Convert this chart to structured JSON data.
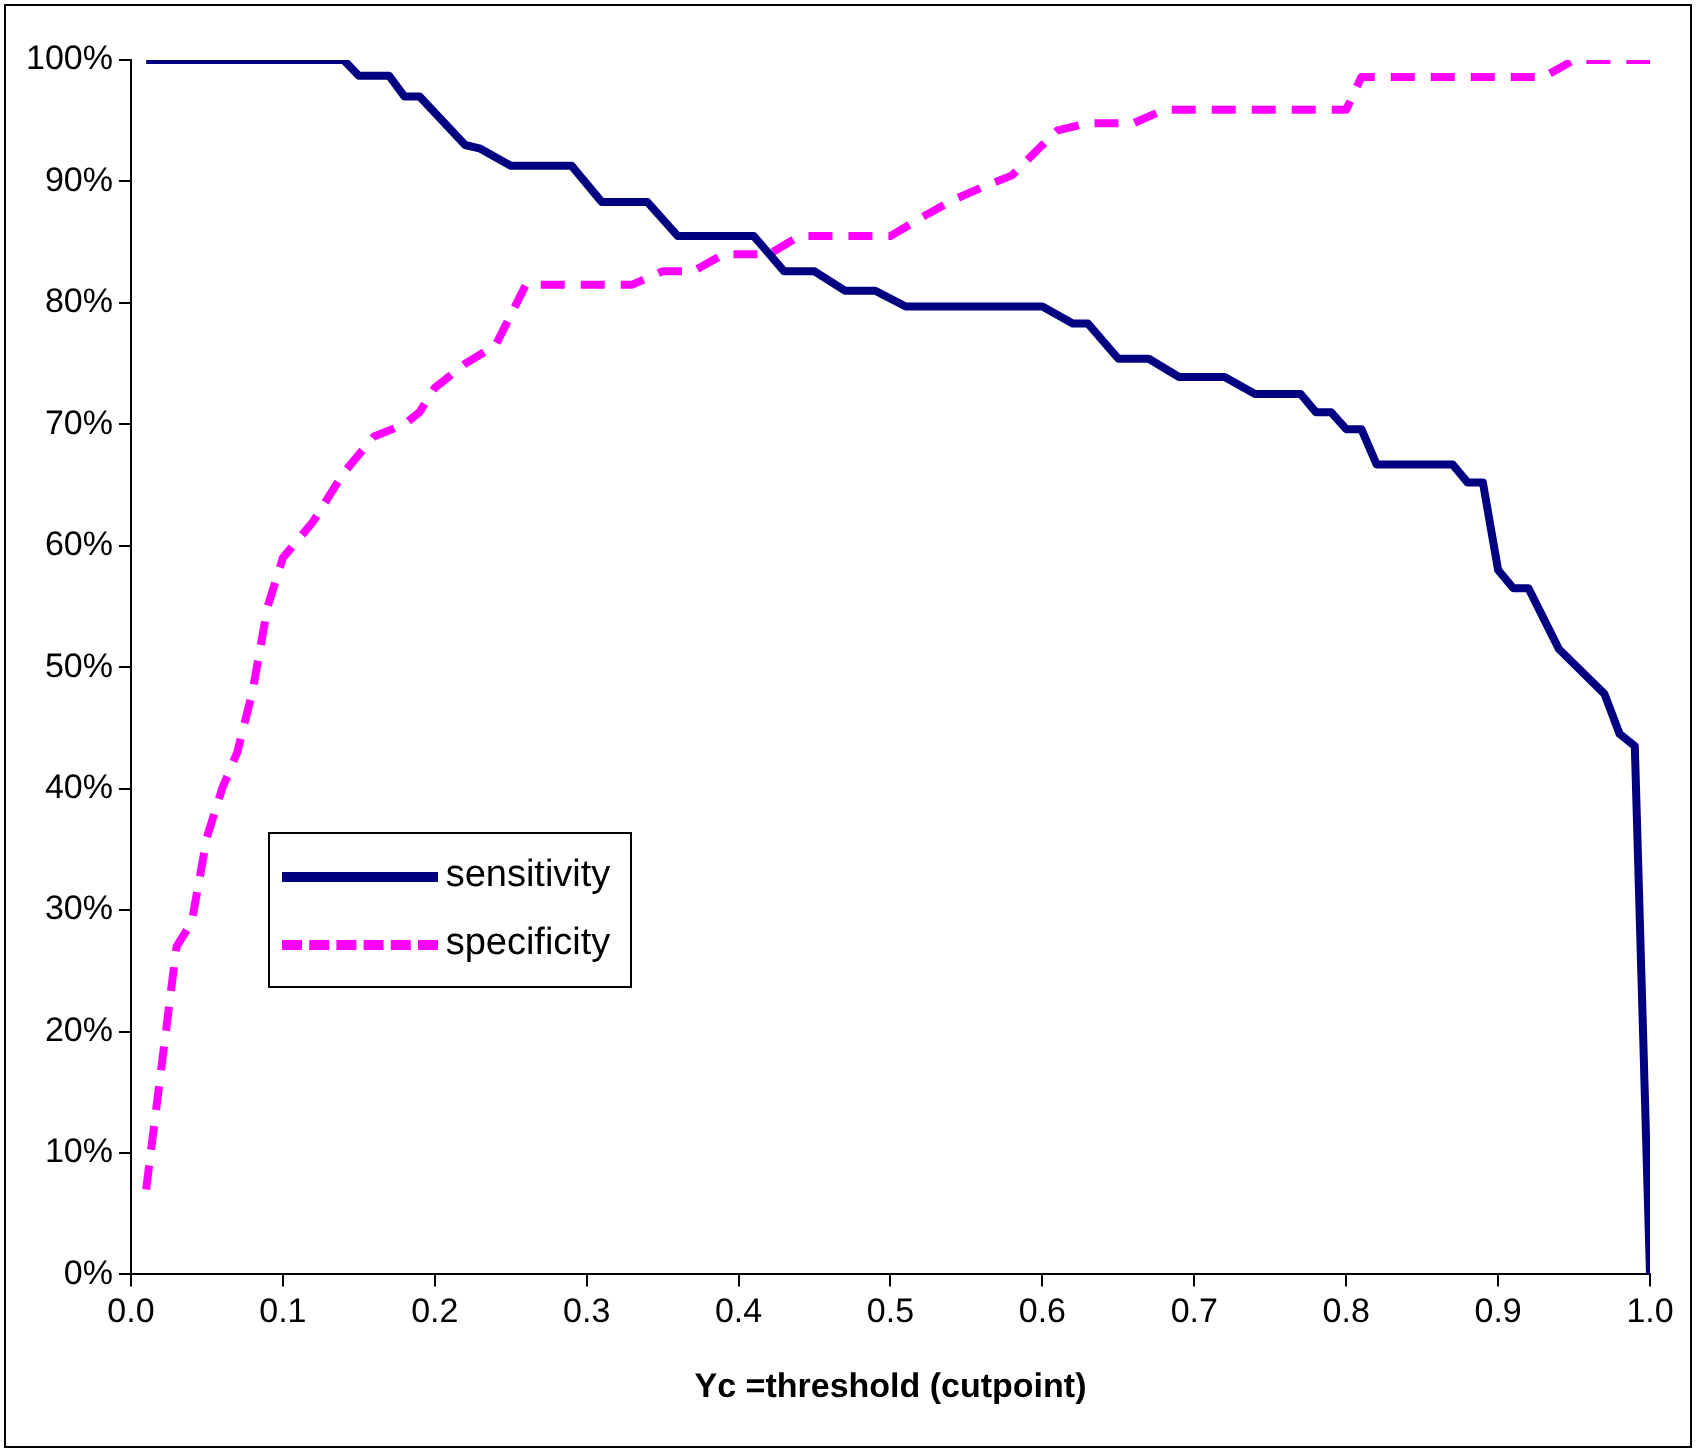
{
  "chart_data": {
    "type": "line",
    "xlabel": "Yc =threshold (cutpoint)",
    "xlim": [
      0,
      1
    ],
    "xticks": [
      {
        "value": 0,
        "label": "0.0"
      },
      {
        "value": 0.1,
        "label": "0.1"
      },
      {
        "value": 0.2,
        "label": "0.2"
      },
      {
        "value": 0.3,
        "label": "0.3"
      },
      {
        "value": 0.4,
        "label": "0.4"
      },
      {
        "value": 0.5,
        "label": "0.5"
      },
      {
        "value": 0.6,
        "label": "0.6"
      },
      {
        "value": 0.7,
        "label": "0.7"
      },
      {
        "value": 0.8,
        "label": "0.8"
      },
      {
        "value": 0.9,
        "label": "0.9"
      },
      {
        "value": 1,
        "label": "1.0"
      }
    ],
    "ylim": [
      0,
      100
    ],
    "yticks": [
      {
        "value": 0,
        "label": "0%"
      },
      {
        "value": 10,
        "label": "10%"
      },
      {
        "value": 20,
        "label": "20%"
      },
      {
        "value": 30,
        "label": "30%"
      },
      {
        "value": 40,
        "label": "40%"
      },
      {
        "value": 50,
        "label": "50%"
      },
      {
        "value": 60,
        "label": "60%"
      },
      {
        "value": 70,
        "label": "70%"
      },
      {
        "value": 80,
        "label": "80%"
      },
      {
        "value": 90,
        "label": "90%"
      },
      {
        "value": 100,
        "label": "100%"
      }
    ],
    "grid": false,
    "legend": "left",
    "marker": "none",
    "series": [
      {
        "name": "sensitivity",
        "color": "#000080",
        "line_style": "solid",
        "x": [
          0.01,
          0.14,
          0.15,
          0.17,
          0.18,
          0.19,
          0.22,
          0.23,
          0.25,
          0.29,
          0.31,
          0.34,
          0.36,
          0.41,
          0.43,
          0.45,
          0.47,
          0.49,
          0.51,
          0.6,
          0.62,
          0.63,
          0.65,
          0.67,
          0.69,
          0.72,
          0.74,
          0.77,
          0.78,
          0.79,
          0.8,
          0.81,
          0.82,
          0.87,
          0.88,
          0.89,
          0.9,
          0.91,
          0.92,
          0.93,
          0.94,
          0.97,
          0.98,
          0.99,
          1.0
        ],
        "values": [
          100,
          100,
          98.7,
          98.7,
          97,
          97,
          93,
          92.7,
          91.3,
          91.3,
          88.3,
          88.3,
          85.5,
          85.5,
          82.6,
          82.6,
          81,
          81,
          79.7,
          79.7,
          78.3,
          78.3,
          75.4,
          75.4,
          73.9,
          73.9,
          72.5,
          72.5,
          71,
          71,
          69.6,
          69.6,
          66.7,
          66.7,
          65.2,
          65.2,
          58,
          56.5,
          56.5,
          54,
          51.5,
          47.8,
          44.5,
          43.5,
          0
        ]
      },
      {
        "name": "specificity",
        "color": "#ff00ff",
        "line_style": "dashed",
        "x": [
          0.01,
          0.02,
          0.03,
          0.04,
          0.05,
          0.06,
          0.07,
          0.08,
          0.09,
          0.1,
          0.12,
          0.13,
          0.14,
          0.16,
          0.18,
          0.19,
          0.2,
          0.22,
          0.24,
          0.25,
          0.26,
          0.33,
          0.35,
          0.37,
          0.39,
          0.42,
          0.44,
          0.5,
          0.52,
          0.54,
          0.56,
          0.58,
          0.6,
          0.61,
          0.63,
          0.66,
          0.68,
          0.8,
          0.81,
          0.93,
          0.95,
          1.0
        ],
        "values": [
          7,
          17,
          27,
          29,
          36,
          40,
          43,
          48,
          55,
          59,
          62,
          64,
          66,
          69,
          70,
          71,
          73,
          75,
          76.5,
          79,
          81.5,
          81.5,
          82.6,
          82.6,
          84,
          84,
          85.5,
          85.5,
          87,
          88.4,
          89.5,
          90.5,
          93,
          94.2,
          94.8,
          94.8,
          95.9,
          95.9,
          98.6,
          98.6,
          100,
          100
        ]
      }
    ]
  }
}
